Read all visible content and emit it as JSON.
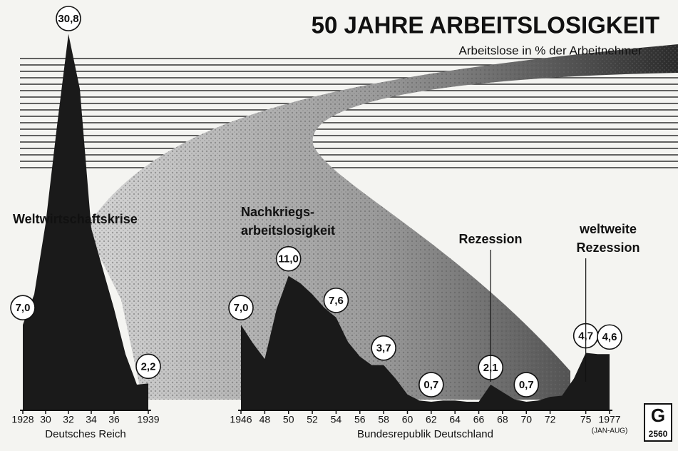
{
  "chart_data": [
    {
      "type": "area",
      "title": "50 JAHRE ARBEITSLOSIGKEIT",
      "subtitle": "Arbeitslose in % der Arbeitnehmer",
      "x_label": "Deutsches Reich",
      "annotations": [
        [
          "Weltwirtschaftskrise"
        ]
      ],
      "x": [
        1928,
        1929,
        1930,
        1931,
        1932,
        1933,
        1934,
        1935,
        1936,
        1937,
        1938,
        1939
      ],
      "values": [
        7.0,
        9.5,
        15.3,
        23.3,
        30.8,
        26.3,
        14.9,
        11.6,
        8.3,
        4.6,
        2.1,
        2.2
      ],
      "value_labels": [
        "7,0",
        null,
        null,
        null,
        "30,8",
        null,
        null,
        null,
        null,
        null,
        null,
        "2,2"
      ],
      "color": "#1a1a1a",
      "xlim": [
        1928,
        1939
      ],
      "ylim": [
        0,
        33
      ],
      "xticks": [
        1928,
        {
          "value": 1930,
          "label": "30"
        },
        {
          "value": 1932,
          "label": "32"
        },
        {
          "value": 1934,
          "label": "34"
        },
        {
          "value": 1936,
          "label": "36"
        },
        1939
      ]
    },
    {
      "type": "area",
      "x_label": "Bundesrepublik Deutschland",
      "annotations": [
        [
          "Nachkriegs-",
          "arbeitslosigkeit"
        ],
        [
          "Rezession"
        ],
        [
          "weltweite",
          "Rezession"
        ]
      ],
      "note": "(JAN-AUG)",
      "logo": {
        "letter": "G",
        "number": "2560"
      },
      "x": [
        1946,
        1947,
        1948,
        1949,
        1950,
        1951,
        1952,
        1953,
        1954,
        1955,
        1956,
        1957,
        1958,
        1959,
        1960,
        1961,
        1962,
        1963,
        1964,
        1965,
        1966,
        1967,
        1968,
        1969,
        1970,
        1971,
        1972,
        1973,
        1974,
        1975,
        1976,
        1977
      ],
      "values": [
        7.0,
        5.5,
        4.2,
        8.3,
        11.0,
        10.4,
        9.5,
        8.4,
        7.6,
        5.6,
        4.4,
        3.7,
        3.7,
        2.6,
        1.3,
        0.8,
        0.7,
        0.8,
        0.8,
        0.7,
        0.7,
        2.1,
        1.5,
        0.9,
        0.7,
        0.8,
        1.1,
        1.2,
        2.6,
        4.7,
        4.6,
        4.6
      ],
      "value_labels": [
        "7,0",
        null,
        null,
        null,
        "11,0",
        null,
        null,
        null,
        "7,6",
        null,
        null,
        null,
        "3,7",
        null,
        null,
        null,
        "0,7",
        null,
        null,
        null,
        null,
        "2,1",
        null,
        null,
        "0,7",
        null,
        null,
        null,
        null,
        "4,7",
        null,
        "4,6"
      ],
      "color": "#1a1a1a",
      "xlim": [
        1946,
        1977
      ],
      "ylim": [
        0,
        33
      ],
      "xticks": [
        1946,
        {
          "value": 1948,
          "label": "48"
        },
        {
          "value": 1950,
          "label": "50"
        },
        {
          "value": 1952,
          "label": "52"
        },
        {
          "value": 1954,
          "label": "54"
        },
        {
          "value": 1956,
          "label": "56"
        },
        {
          "value": 1958,
          "label": "58"
        },
        {
          "value": 1960,
          "label": "60"
        },
        {
          "value": 1962,
          "label": "62"
        },
        {
          "value": 1964,
          "label": "64"
        },
        {
          "value": 1966,
          "label": "66"
        },
        {
          "value": 1968,
          "label": "68"
        },
        {
          "value": 1970,
          "label": "70"
        },
        {
          "value": 1972,
          "label": "72"
        },
        {
          "value": 1975,
          "label": "75"
        },
        1977
      ]
    }
  ]
}
